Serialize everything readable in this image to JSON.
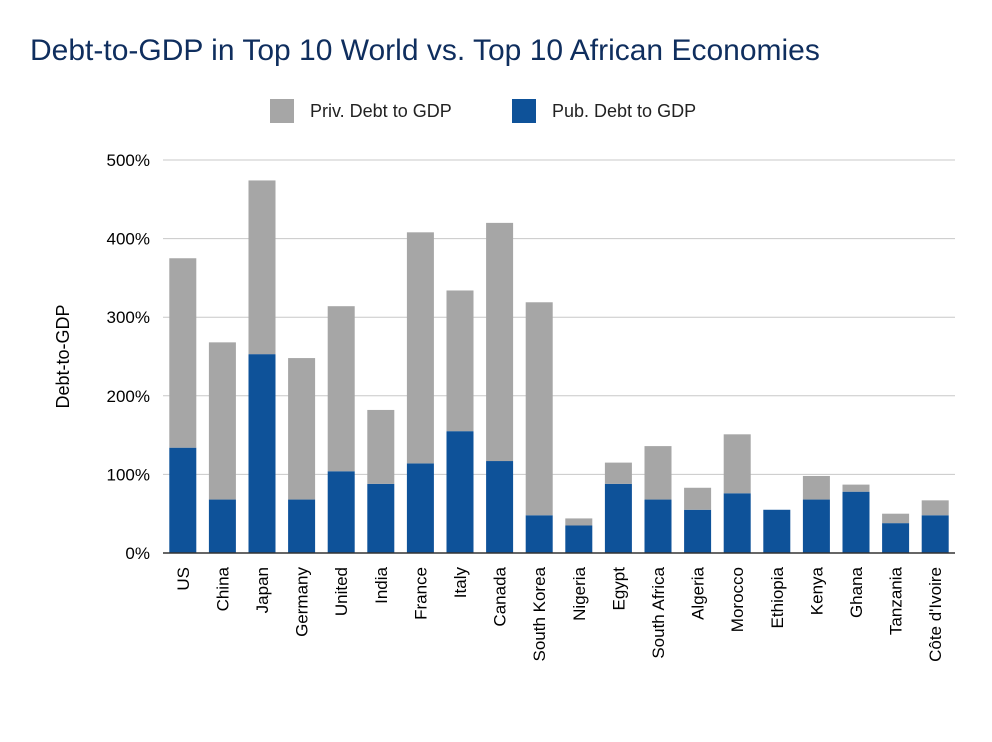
{
  "chart_data": {
    "type": "bar",
    "stacked": true,
    "title": "Debt-to-GDP in Top 10 World vs. Top 10 African Economies",
    "ylabel": "Debt-to-GDP",
    "xlabel": "",
    "ylim": [
      0,
      500
    ],
    "yticks": [
      0,
      100,
      200,
      300,
      400,
      500
    ],
    "ytick_labels": [
      "0%",
      "100%",
      "200%",
      "300%",
      "400%",
      "500%"
    ],
    "grid": true,
    "legend_position": "top",
    "categories": [
      "US",
      "China",
      "Japan",
      "Germany",
      "United",
      "India",
      "France",
      "Italy",
      "Canada",
      "South Korea",
      "Nigeria",
      "Egypt",
      "South Africa",
      "Algeria",
      "Morocco",
      "Ethiopia",
      "Kenya",
      "Ghana",
      "Tanzania",
      "Côte d'Ivoire"
    ],
    "series": [
      {
        "name": "Pub. Debt to GDP",
        "color": "#0e5299",
        "values": [
          134,
          68,
          253,
          68,
          104,
          88,
          114,
          155,
          117,
          48,
          35,
          88,
          68,
          55,
          76,
          55,
          68,
          78,
          38,
          48
        ]
      },
      {
        "name": "Priv. Debt to GDP",
        "color": "#a6a6a6",
        "values": [
          241,
          200,
          221,
          180,
          210,
          94,
          294,
          179,
          303,
          271,
          9,
          27,
          68,
          28,
          75,
          0,
          30,
          9,
          12,
          19
        ]
      }
    ]
  }
}
